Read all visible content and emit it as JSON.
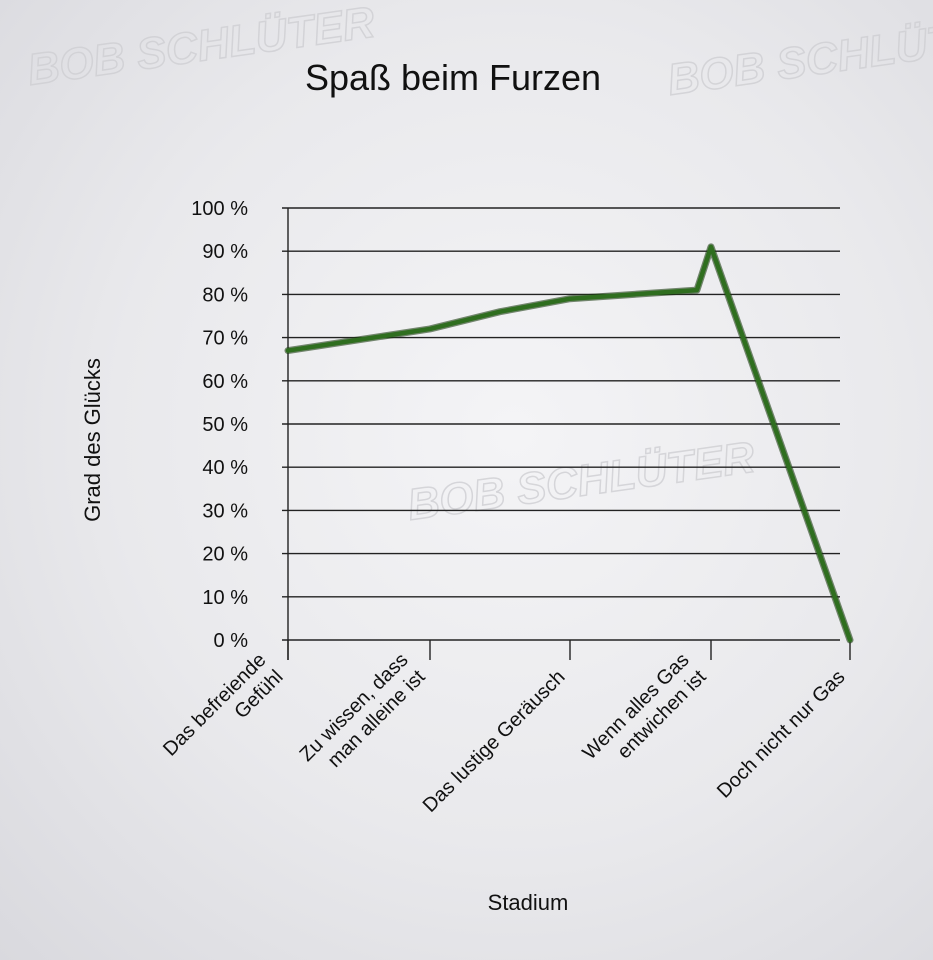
{
  "watermark": "BOB SCHLÜTER",
  "chart_data": {
    "type": "line",
    "title": "Spaß beim Furzen",
    "xlabel": "Stadium",
    "ylabel": "Grad des Glücks",
    "categories": [
      [
        "Das befreiende",
        "Gefühl"
      ],
      [
        "Zu wissen, dass",
        "man alleine ist"
      ],
      [
        "Das lustige Geräusch"
      ],
      [
        "Wenn alles Gas",
        "entwichen ist"
      ],
      [
        "Doch nicht nur Gas"
      ]
    ],
    "x": [
      0,
      1,
      1.5,
      2,
      2.9,
      3,
      4
    ],
    "values": [
      67,
      72,
      76,
      79,
      81,
      91,
      0
    ],
    "ylim": [
      0,
      100
    ],
    "yticks": [
      "0 %",
      "10 %",
      "20 %",
      "30 %",
      "40 %",
      "50 %",
      "60 %",
      "70 %",
      "80 %",
      "90 %",
      "100 %"
    ],
    "line_color": "#2f6e1f",
    "grid": true
  }
}
